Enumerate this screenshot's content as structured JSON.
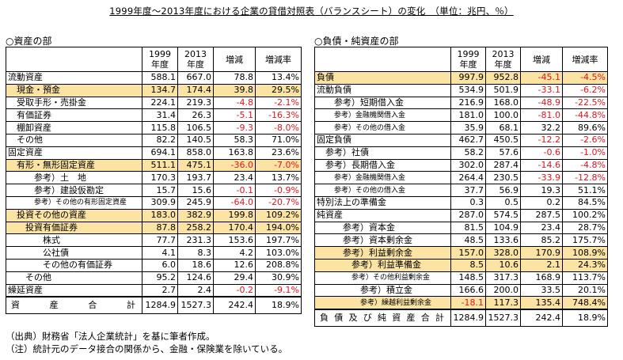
{
  "title": "1999年度～2013年度における企業の貸借対照表（バランスシート）の変化　（単位：兆円、％）",
  "sections": {
    "left": "○資産の部",
    "right": "○負債・純資産の部"
  },
  "headers": {
    "y1": [
      "1999",
      "年度"
    ],
    "y2": [
      "2013",
      "年度"
    ],
    "diff": "増減",
    "rate": "増減率"
  },
  "highlight_color": "#fbe3a4",
  "negative_color": "#e2141e",
  "left_rows": [
    {
      "label": "流動資産",
      "indent": 0,
      "hl": false,
      "small": false,
      "y1": "588.1",
      "y2": "667.0",
      "diff": "78.8",
      "rate": "13.4%"
    },
    {
      "label": "現金・預金",
      "indent": 1,
      "hl": true,
      "small": false,
      "y1": "134.7",
      "y2": "174.4",
      "diff": "39.8",
      "rate": "29.5%"
    },
    {
      "label": "受取手形・売掛金",
      "indent": 1,
      "hl": false,
      "small": false,
      "y1": "224.1",
      "y2": "219.3",
      "diff": "-4.8",
      "rate": "-2.1%"
    },
    {
      "label": "有価証券",
      "indent": 1,
      "hl": false,
      "small": false,
      "y1": "31.4",
      "y2": "26.3",
      "diff": "-5.1",
      "rate": "-16.3%"
    },
    {
      "label": "棚卸資産",
      "indent": 1,
      "hl": false,
      "small": false,
      "y1": "115.8",
      "y2": "106.5",
      "diff": "-9.3",
      "rate": "-8.0%"
    },
    {
      "label": "その他",
      "indent": 1,
      "hl": false,
      "small": false,
      "y1": "82.2",
      "y2": "140.5",
      "diff": "58.3",
      "rate": "71.0%"
    },
    {
      "label": "固定資産",
      "indent": 0,
      "hl": false,
      "small": false,
      "y1": "694.1",
      "y2": "858.0",
      "diff": "163.8",
      "rate": "23.6%"
    },
    {
      "label": "有形・無形固定資産",
      "indent": 1,
      "hl": true,
      "small": false,
      "y1": "511.1",
      "y2": "475.1",
      "diff": "-36.0",
      "rate": "-7.0%"
    },
    {
      "label": "参考）土　地",
      "indent": 3,
      "hl": false,
      "small": false,
      "y1": "170.3",
      "y2": "193.7",
      "diff": "23.4",
      "rate": "13.7%"
    },
    {
      "label": "参考）建設仮勘定",
      "indent": 3,
      "hl": false,
      "small": false,
      "y1": "15.7",
      "y2": "15.6",
      "diff": "-0.1",
      "rate": "-0.9%"
    },
    {
      "label": "参考）その他の有形固定資産",
      "indent": 3,
      "hl": false,
      "small": true,
      "y1": "309.9",
      "y2": "245.9",
      "diff": "-64.0",
      "rate": "-20.7%"
    },
    {
      "label": "投資その他の資産",
      "indent": 1,
      "hl": true,
      "small": false,
      "y1": "183.0",
      "y2": "382.9",
      "diff": "199.8",
      "rate": "109.2%"
    },
    {
      "label": "投資有価証券",
      "indent": 2,
      "hl": true,
      "small": false,
      "y1": "87.8",
      "y2": "258.2",
      "diff": "170.4",
      "rate": "194.0%"
    },
    {
      "label": "株式",
      "indent": 4,
      "hl": false,
      "small": false,
      "y1": "77.7",
      "y2": "231.3",
      "diff": "153.6",
      "rate": "197.7%"
    },
    {
      "label": "公社債",
      "indent": 4,
      "hl": false,
      "small": false,
      "y1": "4.1",
      "y2": "8.3",
      "diff": "4.2",
      "rate": "103.0%"
    },
    {
      "label": "その他の有価証券",
      "indent": 4,
      "hl": false,
      "small": false,
      "y1": "6.0",
      "y2": "18.6",
      "diff": "12.6",
      "rate": "208.8%"
    },
    {
      "label": "その他",
      "indent": 2,
      "hl": false,
      "small": false,
      "y1": "95.2",
      "y2": "124.6",
      "diff": "29.4",
      "rate": "30.9%"
    },
    {
      "label": "繰延資産",
      "indent": 0,
      "hl": false,
      "small": false,
      "y1": "2.7",
      "y2": "2.4",
      "diff": "-0.2",
      "rate": "-9.1%"
    }
  ],
  "left_total": {
    "label": "資　産　合　計",
    "chars": [
      "資",
      "産",
      "合",
      "計"
    ],
    "y1": "1284.9",
    "y2": "1527.3",
    "diff": "242.4",
    "rate": "18.9%"
  },
  "right_rows": [
    {
      "label": "負債",
      "indent": 0,
      "hl": true,
      "small": false,
      "y1": "997.9",
      "y2": "952.8",
      "diff": "-45.1",
      "rate": "-4.5%"
    },
    {
      "label": "流動負債",
      "indent": 0,
      "hl": false,
      "small": false,
      "y1": "534.9",
      "y2": "501.9",
      "diff": "-33.1",
      "rate": "-6.2%"
    },
    {
      "label": "参考）短期借入金",
      "indent": 2,
      "hl": false,
      "small": false,
      "y1": "216.9",
      "y2": "168.0",
      "diff": "-48.9",
      "rate": "-22.5%"
    },
    {
      "label": "参考）金融機関借入金",
      "indent": 2,
      "hl": false,
      "small": true,
      "y1": "181.0",
      "y2": "100.0",
      "diff": "-81.0",
      "rate": "-44.8%"
    },
    {
      "label": "参考）その他の借入金",
      "indent": 2,
      "hl": false,
      "small": true,
      "y1": "35.9",
      "y2": "68.1",
      "diff": "32.2",
      "rate": "89.6%"
    },
    {
      "label": "固定負債",
      "indent": 0,
      "hl": false,
      "small": false,
      "y1": "462.7",
      "y2": "450.5",
      "diff": "-12.2",
      "rate": "-2.6%"
    },
    {
      "label": "参考）社債",
      "indent": 1,
      "hl": false,
      "small": false,
      "y1": "58.2",
      "y2": "57.6",
      "diff": "-0.6",
      "rate": "-1.0%"
    },
    {
      "label": "参考）長期借入金",
      "indent": 1,
      "hl": false,
      "small": false,
      "y1": "302.0",
      "y2": "287.4",
      "diff": "-14.6",
      "rate": "-4.8%"
    },
    {
      "label": "参考）金融機関借入金",
      "indent": 2,
      "hl": false,
      "small": true,
      "y1": "264.4",
      "y2": "230.5",
      "diff": "-33.9",
      "rate": "-12.8%"
    },
    {
      "label": "参考）その他の借入金",
      "indent": 2,
      "hl": false,
      "small": true,
      "y1": "37.7",
      "y2": "56.9",
      "diff": "19.3",
      "rate": "51.1%"
    },
    {
      "label": "特別法上の準備金",
      "indent": 0,
      "hl": false,
      "small": false,
      "y1": "0.3",
      "y2": "0.5",
      "diff": "0.2",
      "rate": "84.5%"
    },
    {
      "label": "純資産",
      "indent": 0,
      "hl": false,
      "small": false,
      "y1": "287.0",
      "y2": "574.5",
      "diff": "287.5",
      "rate": "100.2%"
    },
    {
      "label": "参考）資本金",
      "indent": 3,
      "hl": false,
      "small": false,
      "y1": "81.5",
      "y2": "104.9",
      "diff": "23.4",
      "rate": "28.7%"
    },
    {
      "label": "参考）資本剰余金",
      "indent": 3,
      "hl": false,
      "small": false,
      "y1": "48.5",
      "y2": "133.6",
      "diff": "85.2",
      "rate": "175.7%"
    },
    {
      "label": "参考）利益剰余金",
      "indent": 3,
      "hl": true,
      "small": false,
      "y1": "157.0",
      "y2": "328.0",
      "diff": "170.9",
      "rate": "108.9%"
    },
    {
      "label": "参考）利益準備金",
      "indent": 4,
      "hl": true,
      "small": false,
      "y1": "8.5",
      "y2": "10.6",
      "diff": "2.1",
      "rate": "24.3%"
    },
    {
      "label": "参考）その他利益剰余金",
      "indent": 4,
      "hl": false,
      "small": true,
      "y1": "148.5",
      "y2": "317.3",
      "diff": "168.9",
      "rate": "113.7%"
    },
    {
      "label": "参考）積立金",
      "indent": 5,
      "hl": false,
      "small": false,
      "y1": "166.6",
      "y2": "200.0",
      "diff": "33.5",
      "rate": "20.1%"
    },
    {
      "label": "参考）繰越利益剰余金",
      "indent": 5,
      "hl": true,
      "small": true,
      "y1": "-18.1",
      "y2": "117.3",
      "diff": "135.4",
      "rate": "748.4%"
    }
  ],
  "right_total": {
    "label": "負債及び純資産合計",
    "chars": [
      "負",
      "債",
      "及",
      "び",
      "純",
      "資",
      "産",
      "合",
      "計"
    ],
    "y1": "1284.9",
    "y2": "1527.3",
    "diff": "242.4",
    "rate": "18.9%"
  },
  "notes": [
    "（出典）財務省「法人企業統計」を基に筆者作成。",
    "（注）統計元のデータ接合の関係から、金融・保険業を除いている。"
  ]
}
